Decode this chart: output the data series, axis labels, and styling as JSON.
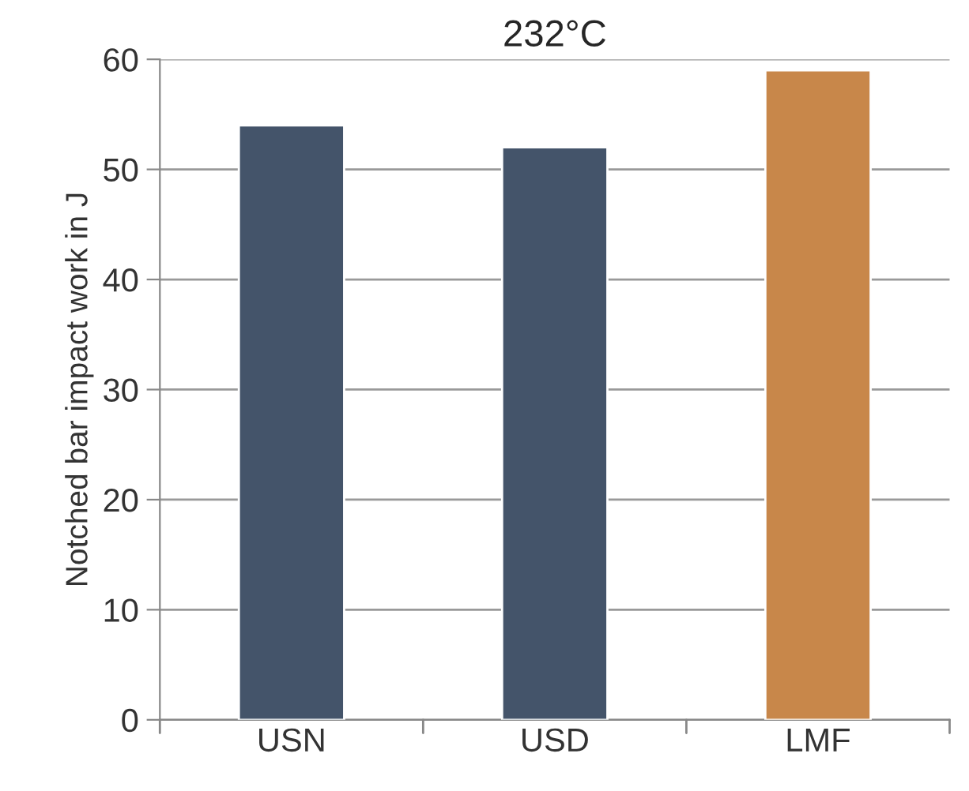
{
  "chart_data": {
    "type": "bar",
    "title": "232°C",
    "ylabel": "Notched bar impact work in J",
    "categories": [
      "USN",
      "USD",
      "LMF"
    ],
    "values": [
      54,
      52,
      59
    ],
    "colors": [
      "#44546a",
      "#44546a",
      "#c8874a"
    ],
    "ylim": [
      0,
      60
    ],
    "yticks": [
      0,
      10,
      20,
      30,
      40,
      50,
      60
    ],
    "grid": "y"
  }
}
